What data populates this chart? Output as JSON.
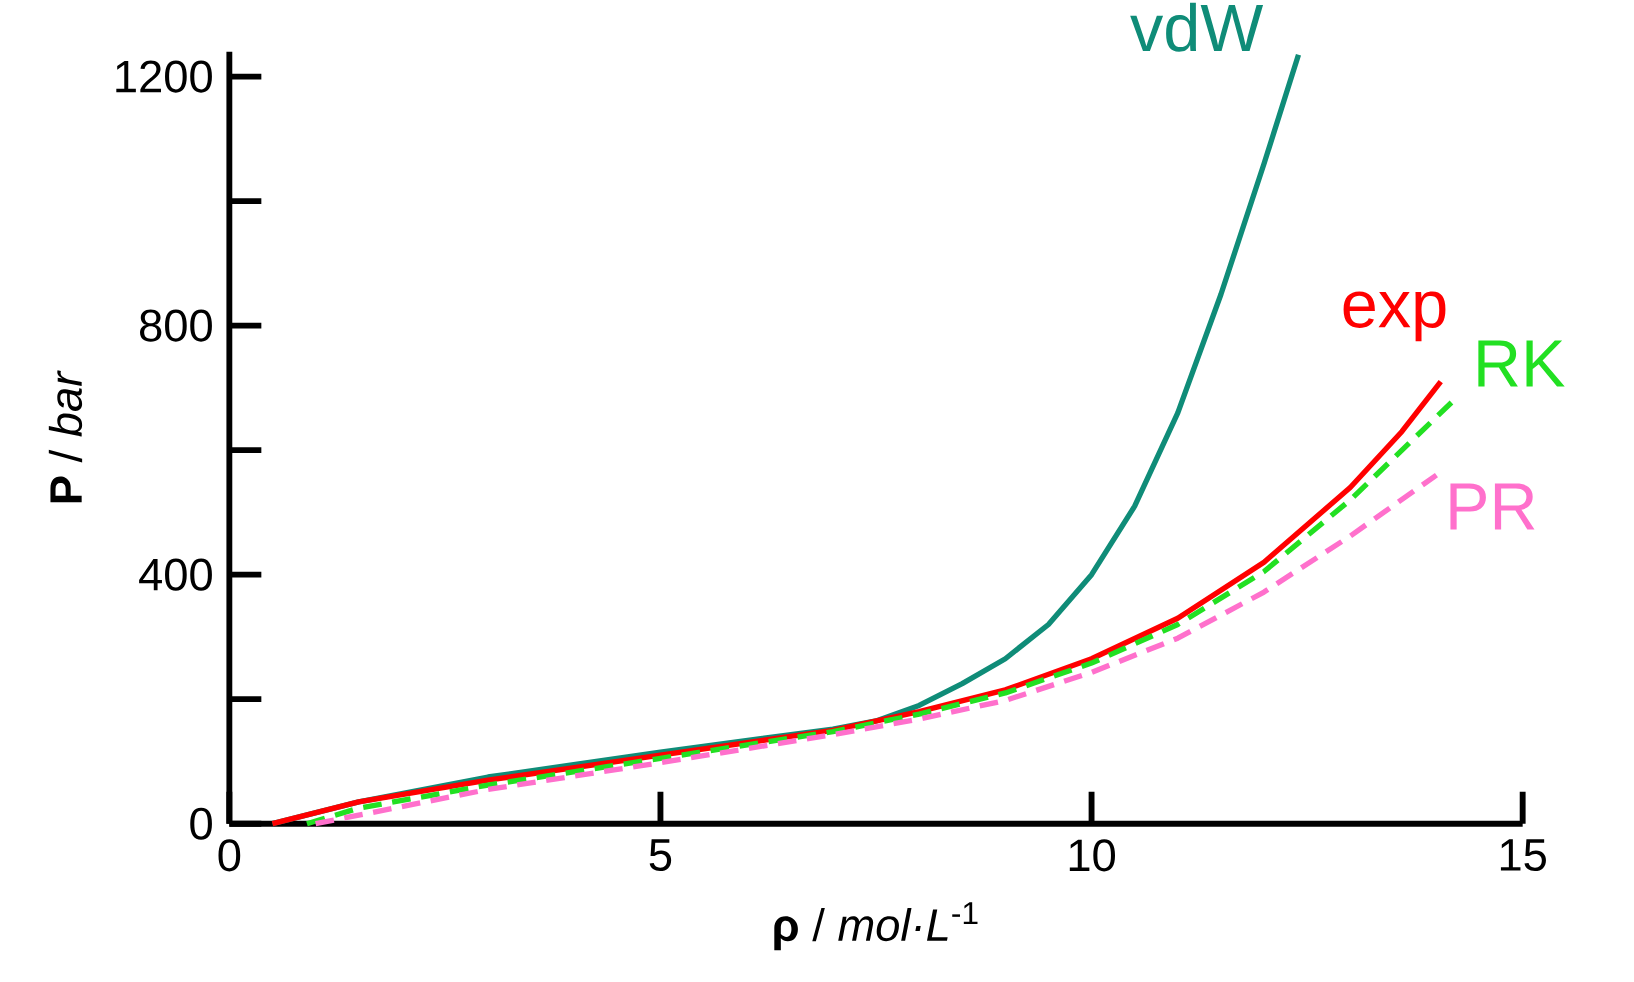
{
  "chart_data": {
    "type": "line",
    "xlabel": "**ρ** / *mol·L*$^{-1}$",
    "ylabel": "**P** / *bar*",
    "xlim": [
      0,
      15
    ],
    "xticks": [
      0,
      5,
      10,
      15
    ],
    "ylim": [
      0,
      1240
    ],
    "yticks": [
      0,
      {
        "value": 200,
        "label": null
      },
      400,
      {
        "value": 600,
        "label": null
      },
      800,
      {
        "value": 1000,
        "label": null
      },
      1200
    ],
    "grid": false,
    "marker": "none",
    "series": [
      {
        "name": "vdW",
        "color": "#0f8c78",
        "line_style": "solid",
        "x": [
          0.5,
          1.5,
          3,
          5,
          7,
          7.5,
          8,
          8.5,
          9,
          9.5,
          10,
          10.5,
          11,
          11.5,
          12,
          12.4
        ],
        "values": [
          0,
          35,
          75,
          115,
          152,
          165,
          190,
          225,
          265,
          320,
          400,
          510,
          660,
          850,
          1060,
          1235
        ]
      },
      {
        "name": "exp",
        "color": "#ff0000",
        "line_style": "solid",
        "x": [
          0.5,
          1.5,
          3,
          5,
          7,
          8,
          9,
          10,
          11,
          12,
          13,
          13.6,
          14.05
        ],
        "values": [
          0,
          35,
          70,
          110,
          150,
          180,
          215,
          265,
          330,
          420,
          540,
          630,
          710
        ]
      },
      {
        "name": "RK",
        "color": "#22e022",
        "line_style": "dashed",
        "x": [
          0.9,
          1.5,
          3,
          5,
          7,
          8,
          9,
          10,
          11,
          12,
          13,
          14.2
        ],
        "values": [
          0,
          25,
          62,
          105,
          148,
          176,
          210,
          258,
          320,
          405,
          520,
          680
        ]
      },
      {
        "name": "PR",
        "color": "#ff70cc",
        "line_style": "dashed",
        "x": [
          1,
          3,
          5,
          7,
          8,
          9,
          10,
          11,
          12,
          13,
          14
        ],
        "values": [
          0,
          55,
          98,
          143,
          168,
          198,
          243,
          298,
          372,
          462,
          560
        ]
      }
    ]
  }
}
